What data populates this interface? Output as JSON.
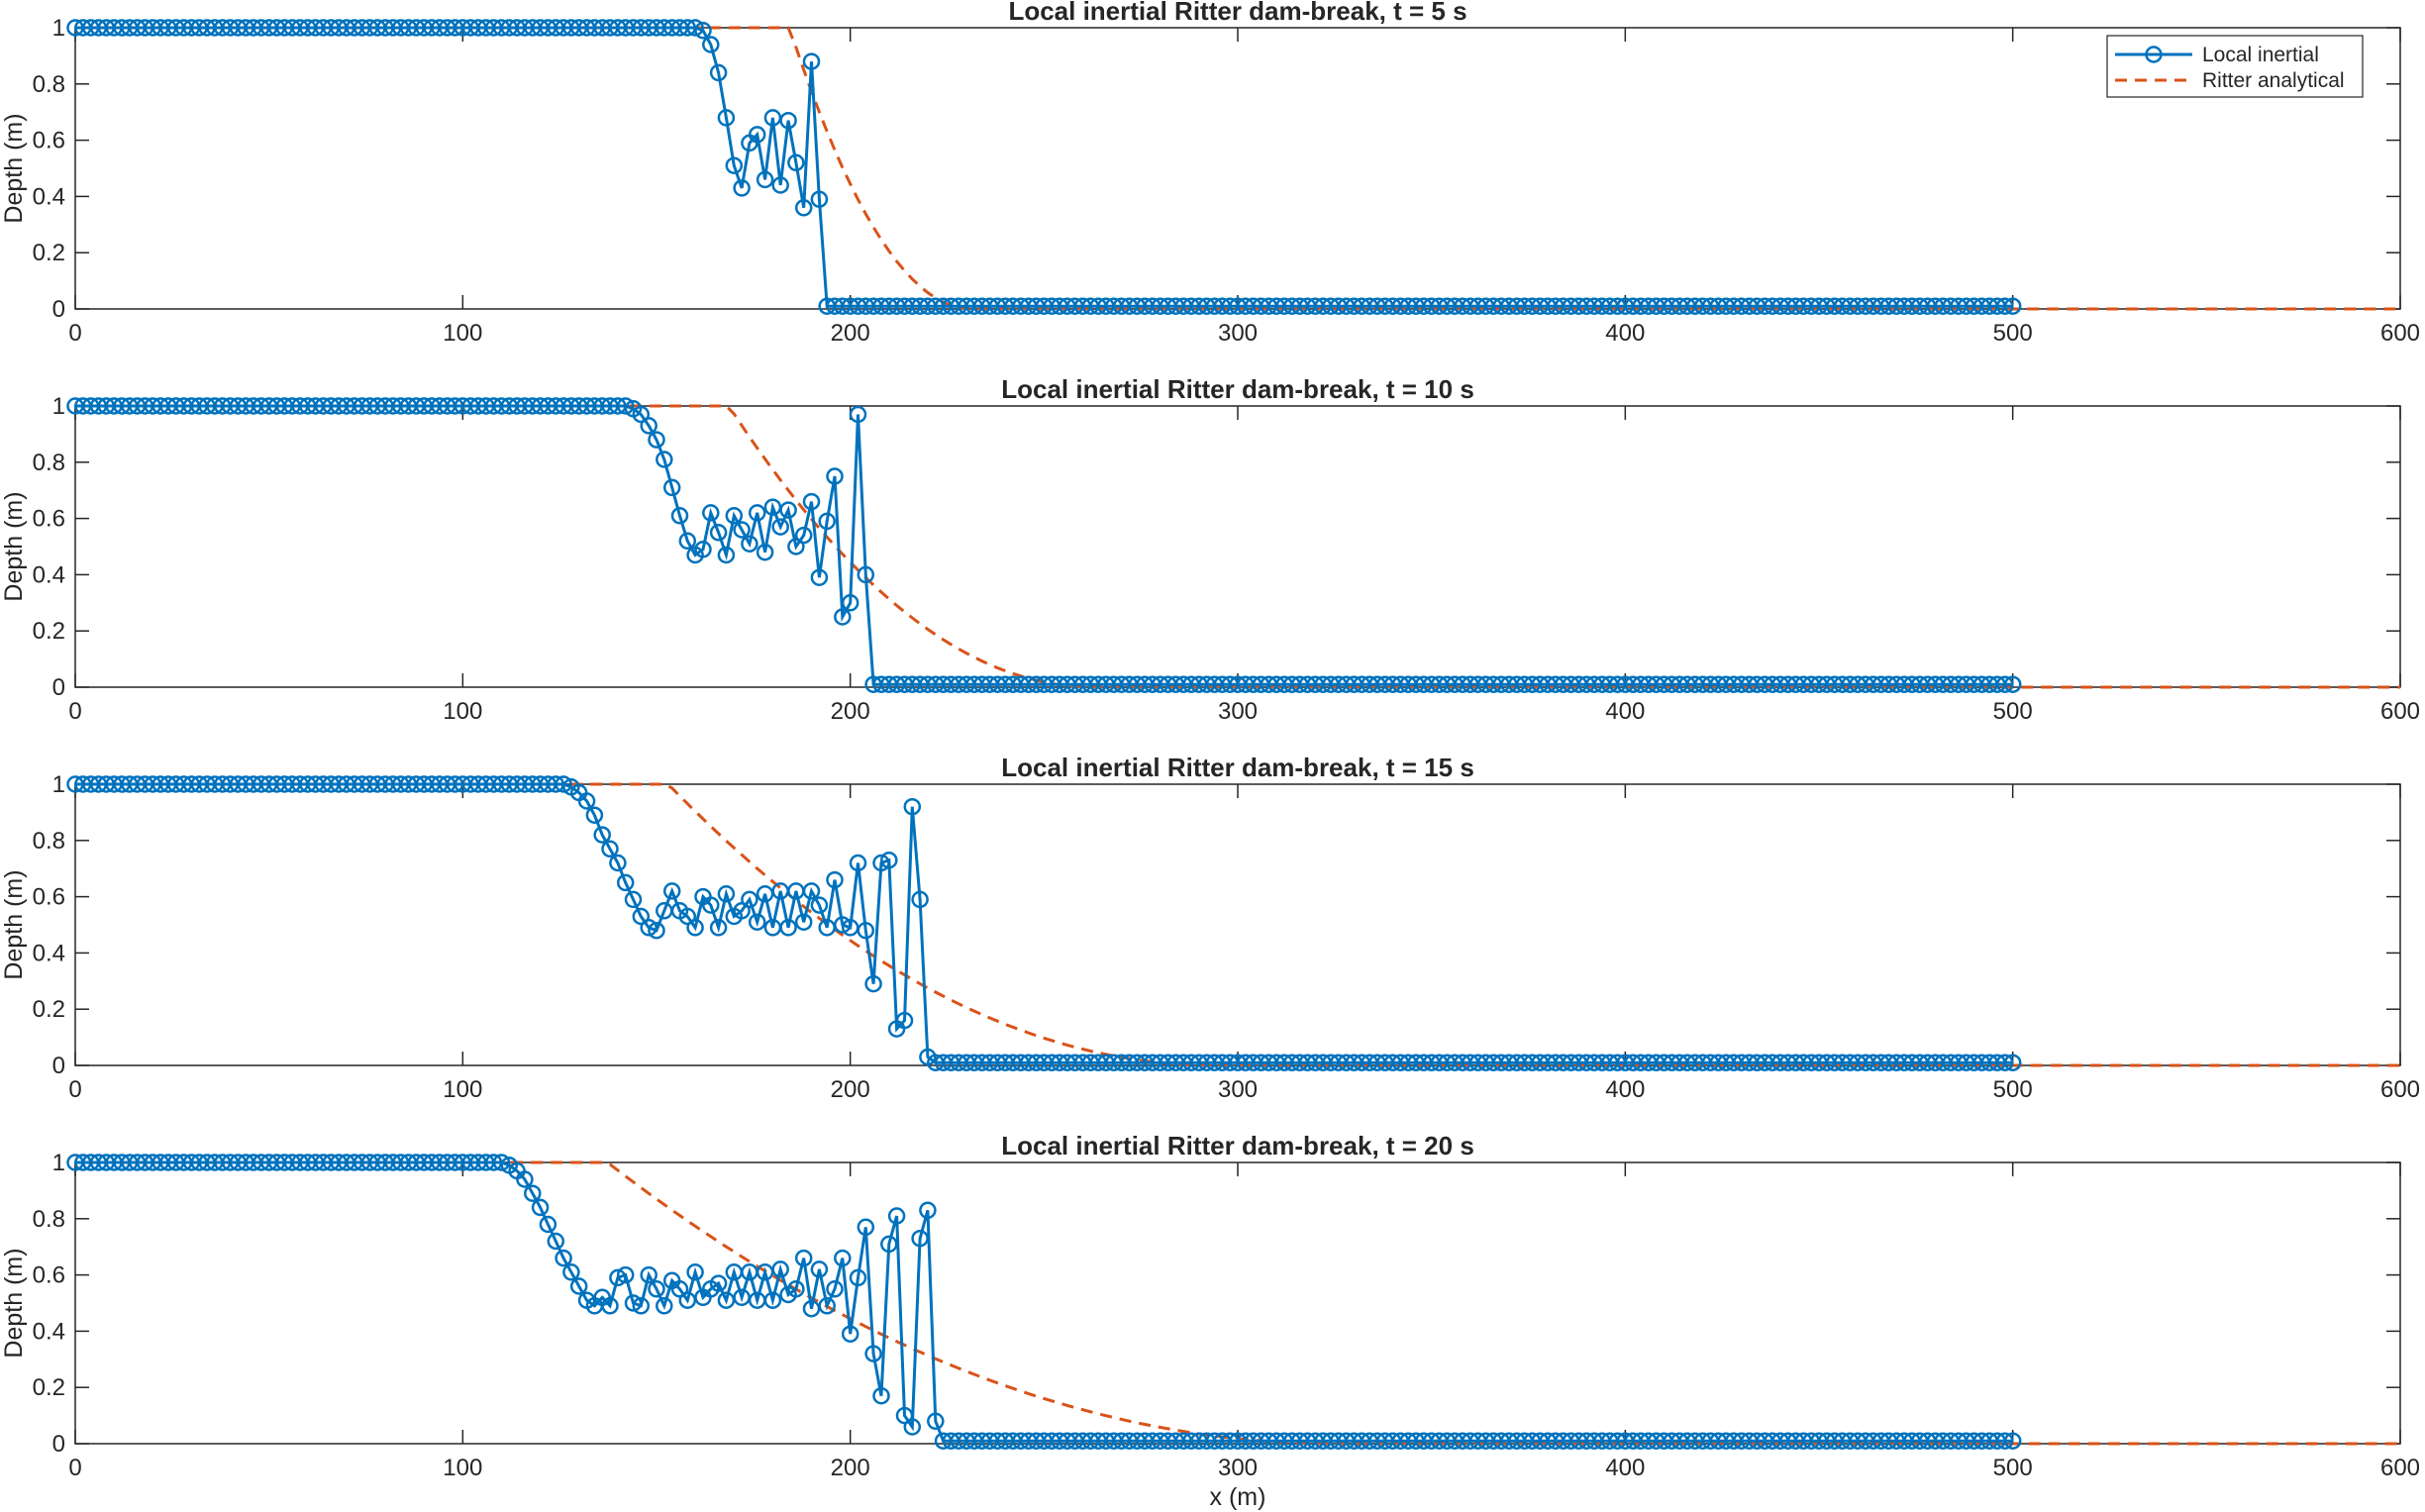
{
  "figure": {
    "legend": {
      "position": "top-right",
      "entries": [
        "Local inertial",
        "Ritter analytical"
      ]
    },
    "colors": {
      "local_inertial": "#0072BD",
      "ritter": "#D95319",
      "axes": "#262626",
      "background": "#ffffff"
    }
  },
  "chart_data": [
    {
      "type": "line",
      "title": "Local inertial Ritter dam-break, t = 5 s",
      "xlabel": "",
      "ylabel": "Depth (m)",
      "xlim": [
        0,
        600
      ],
      "ylim": [
        0,
        1
      ],
      "xticks": [
        "0",
        "100",
        "200",
        "300",
        "400",
        "500",
        "600"
      ],
      "yticks": [
        "0",
        "0.2",
        "0.4",
        "0.6",
        "0.8",
        "1"
      ],
      "grid": false,
      "legend": "top-right",
      "t": 5,
      "x_start": 0,
      "x_step": 2,
      "x_end": 500,
      "profile": [
        [
          0,
          1
        ],
        [
          160,
          1
        ],
        [
          162,
          0.99
        ],
        [
          164,
          0.94
        ],
        [
          166,
          0.84
        ],
        [
          168,
          0.68
        ],
        [
          170,
          0.51
        ],
        [
          172,
          0.43
        ],
        [
          174,
          0.59
        ],
        [
          176,
          0.62
        ],
        [
          178,
          0.46
        ],
        [
          180,
          0.68
        ],
        [
          182,
          0.44
        ],
        [
          184,
          0.67
        ],
        [
          186,
          0.52
        ],
        [
          188,
          0.36
        ],
        [
          190,
          0.88
        ],
        [
          192,
          0.39
        ],
        [
          194,
          0.01
        ],
        [
          500,
          0.01
        ]
      ],
      "series": [
        {
          "name": "Local inertial",
          "style": "solid-circles"
        },
        {
          "name": "Ritter analytical",
          "style": "dashed"
        }
      ]
    },
    {
      "type": "line",
      "title": "Local inertial Ritter dam-break, t = 10 s",
      "xlabel": "",
      "ylabel": "Depth (m)",
      "xlim": [
        0,
        600
      ],
      "ylim": [
        0,
        1
      ],
      "xticks": [
        "0",
        "100",
        "200",
        "300",
        "400",
        "500",
        "600"
      ],
      "yticks": [
        "0",
        "0.2",
        "0.4",
        "0.6",
        "0.8",
        "1"
      ],
      "grid": false,
      "t": 10,
      "x_start": 0,
      "x_step": 2,
      "x_end": 500,
      "profile": [
        [
          0,
          1
        ],
        [
          142,
          1
        ],
        [
          144,
          0.99
        ],
        [
          146,
          0.97
        ],
        [
          148,
          0.93
        ],
        [
          150,
          0.88
        ],
        [
          152,
          0.81
        ],
        [
          154,
          0.71
        ],
        [
          156,
          0.61
        ],
        [
          158,
          0.52
        ],
        [
          160,
          0.47
        ],
        [
          162,
          0.49
        ],
        [
          164,
          0.62
        ],
        [
          166,
          0.55
        ],
        [
          168,
          0.47
        ],
        [
          170,
          0.61
        ],
        [
          172,
          0.56
        ],
        [
          174,
          0.51
        ],
        [
          176,
          0.62
        ],
        [
          178,
          0.48
        ],
        [
          180,
          0.64
        ],
        [
          182,
          0.57
        ],
        [
          184,
          0.63
        ],
        [
          186,
          0.5
        ],
        [
          188,
          0.54
        ],
        [
          190,
          0.66
        ],
        [
          192,
          0.39
        ],
        [
          194,
          0.59
        ],
        [
          196,
          0.75
        ],
        [
          198,
          0.25
        ],
        [
          200,
          0.3
        ],
        [
          202,
          0.97
        ],
        [
          204,
          0.4
        ],
        [
          206,
          0.01
        ],
        [
          500,
          0.01
        ]
      ],
      "series": [
        {
          "name": "Local inertial",
          "style": "solid-circles"
        },
        {
          "name": "Ritter analytical",
          "style": "dashed"
        }
      ]
    },
    {
      "type": "line",
      "title": "Local inertial Ritter dam-break, t = 15 s",
      "xlabel": "",
      "ylabel": "Depth (m)",
      "xlim": [
        0,
        600
      ],
      "ylim": [
        0,
        1
      ],
      "xticks": [
        "0",
        "100",
        "200",
        "300",
        "400",
        "500",
        "600"
      ],
      "yticks": [
        "0",
        "0.2",
        "0.4",
        "0.6",
        "0.8",
        "1"
      ],
      "grid": false,
      "t": 15,
      "x_start": 0,
      "x_step": 2,
      "x_end": 500,
      "profile": [
        [
          0,
          1
        ],
        [
          126,
          1
        ],
        [
          128,
          0.99
        ],
        [
          130,
          0.97
        ],
        [
          132,
          0.94
        ],
        [
          134,
          0.89
        ],
        [
          136,
          0.82
        ],
        [
          138,
          0.77
        ],
        [
          140,
          0.72
        ],
        [
          142,
          0.65
        ],
        [
          144,
          0.59
        ],
        [
          146,
          0.53
        ],
        [
          148,
          0.49
        ],
        [
          150,
          0.48
        ],
        [
          152,
          0.55
        ],
        [
          154,
          0.62
        ],
        [
          156,
          0.55
        ],
        [
          158,
          0.53
        ],
        [
          160,
          0.49
        ],
        [
          162,
          0.6
        ],
        [
          164,
          0.57
        ],
        [
          166,
          0.49
        ],
        [
          168,
          0.61
        ],
        [
          170,
          0.53
        ],
        [
          172,
          0.55
        ],
        [
          174,
          0.59
        ],
        [
          176,
          0.51
        ],
        [
          178,
          0.61
        ],
        [
          180,
          0.49
        ],
        [
          182,
          0.62
        ],
        [
          184,
          0.49
        ],
        [
          186,
          0.62
        ],
        [
          188,
          0.51
        ],
        [
          190,
          0.62
        ],
        [
          192,
          0.57
        ],
        [
          194,
          0.49
        ],
        [
          196,
          0.66
        ],
        [
          198,
          0.5
        ],
        [
          200,
          0.49
        ],
        [
          202,
          0.72
        ],
        [
          204,
          0.48
        ],
        [
          206,
          0.29
        ],
        [
          208,
          0.72
        ],
        [
          210,
          0.73
        ],
        [
          212,
          0.13
        ],
        [
          214,
          0.16
        ],
        [
          216,
          0.92
        ],
        [
          218,
          0.59
        ],
        [
          220,
          0.03
        ],
        [
          222,
          0.01
        ],
        [
          500,
          0.01
        ]
      ],
      "series": [
        {
          "name": "Local inertial",
          "style": "solid-circles"
        },
        {
          "name": "Ritter analytical",
          "style": "dashed"
        }
      ]
    },
    {
      "type": "line",
      "title": "Local inertial Ritter dam-break, t = 20 s",
      "xlabel": "x (m)",
      "ylabel": "Depth (m)",
      "xlim": [
        0,
        600
      ],
      "ylim": [
        0,
        1
      ],
      "xticks": [
        "0",
        "100",
        "200",
        "300",
        "400",
        "500",
        "600"
      ],
      "yticks": [
        "0",
        "0.2",
        "0.4",
        "0.6",
        "0.8",
        "1"
      ],
      "grid": false,
      "t": 20,
      "x_start": 0,
      "x_step": 2,
      "x_end": 500,
      "profile": [
        [
          0,
          1
        ],
        [
          110,
          1
        ],
        [
          112,
          0.99
        ],
        [
          114,
          0.97
        ],
        [
          116,
          0.94
        ],
        [
          118,
          0.89
        ],
        [
          120,
          0.84
        ],
        [
          122,
          0.78
        ],
        [
          124,
          0.72
        ],
        [
          126,
          0.66
        ],
        [
          128,
          0.61
        ],
        [
          130,
          0.56
        ],
        [
          132,
          0.51
        ],
        [
          134,
          0.49
        ],
        [
          136,
          0.52
        ],
        [
          138,
          0.49
        ],
        [
          140,
          0.59
        ],
        [
          142,
          0.6
        ],
        [
          144,
          0.5
        ],
        [
          146,
          0.49
        ],
        [
          148,
          0.6
        ],
        [
          150,
          0.55
        ],
        [
          152,
          0.49
        ],
        [
          154,
          0.58
        ],
        [
          156,
          0.55
        ],
        [
          158,
          0.51
        ],
        [
          160,
          0.61
        ],
        [
          162,
          0.52
        ],
        [
          164,
          0.55
        ],
        [
          166,
          0.57
        ],
        [
          168,
          0.51
        ],
        [
          170,
          0.61
        ],
        [
          172,
          0.52
        ],
        [
          174,
          0.61
        ],
        [
          176,
          0.51
        ],
        [
          178,
          0.61
        ],
        [
          180,
          0.51
        ],
        [
          182,
          0.62
        ],
        [
          184,
          0.53
        ],
        [
          186,
          0.55
        ],
        [
          188,
          0.66
        ],
        [
          190,
          0.48
        ],
        [
          192,
          0.62
        ],
        [
          194,
          0.49
        ],
        [
          196,
          0.55
        ],
        [
          198,
          0.66
        ],
        [
          200,
          0.39
        ],
        [
          202,
          0.59
        ],
        [
          204,
          0.77
        ],
        [
          206,
          0.32
        ],
        [
          208,
          0.17
        ],
        [
          210,
          0.71
        ],
        [
          212,
          0.81
        ],
        [
          214,
          0.1
        ],
        [
          216,
          0.06
        ],
        [
          218,
          0.73
        ],
        [
          220,
          0.83
        ],
        [
          222,
          0.08
        ],
        [
          224,
          0.01
        ],
        [
          500,
          0.01
        ]
      ],
      "series": [
        {
          "name": "Local inertial",
          "style": "solid-circles"
        },
        {
          "name": "Ritter analytical",
          "style": "dashed"
        }
      ]
    }
  ]
}
